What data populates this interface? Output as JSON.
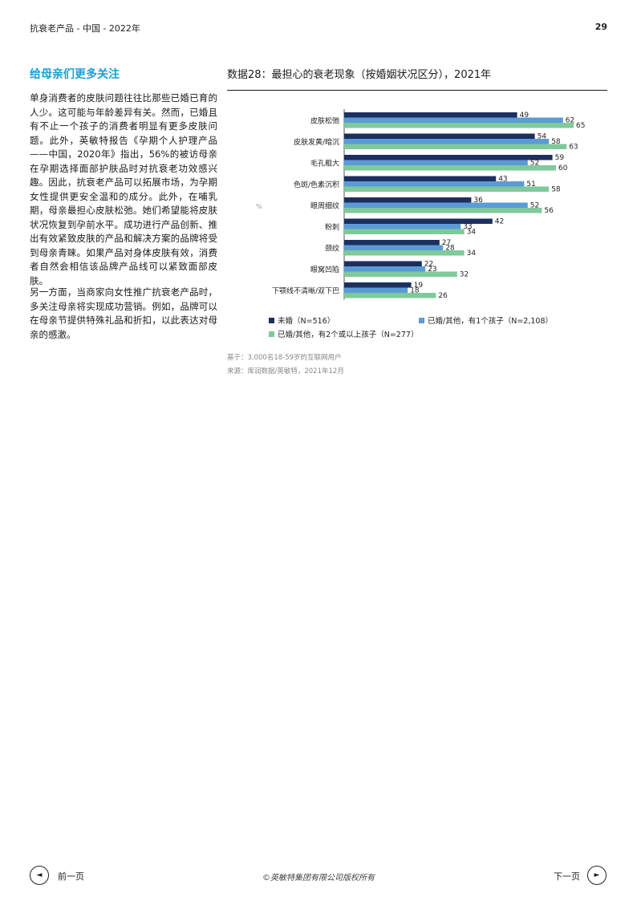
{
  "header": {
    "left": "抗衰老产品 - 中国 - 2022年",
    "page_number": "29"
  },
  "section": {
    "title": "给母亲们更多关注",
    "paragraphs": [
      "单身消费者的皮肤问题往往比那些已婚已育的人少。这可能与年龄差异有关。然而，已婚且有不止一个孩子的消费者明显有更多皮肤问题。此外，英敏特报告《孕期个人护理产品——中国，2020年》指出，56%的被访母亲在孕期选择面部护肤品时对抗衰老功效感兴趣。因此，抗衰老产品可以拓展市场，为孕期女性提供更安全温和的成分。此外，在哺乳期，母亲最担心皮肤松弛。她们希望能将皮肤状况恢复到孕前水平。成功进行产品创新、推出有效紧致皮肤的产品和解决方案的品牌将受到母亲青睐。如果产品对身体皮肤有效，消费者自然会相信该品牌产品线可以紧致面部皮肤。",
      "另一方面，当商家向女性推广抗衰老产品时，多关注母亲将实现成功营销。例如，品牌可以在母亲节提供特殊礼品和折扣，以此表达对母亲的感激。"
    ]
  },
  "chart_data": {
    "type": "bar",
    "orientation": "horizontal",
    "title": "数据28：最担心的衰老现象（按婚姻状况区分），2021年",
    "unit_label": "%",
    "categories": [
      "皮肤松弛",
      "皮肤发黄/暗沉",
      "毛孔粗大",
      "色斑/色素沉积",
      "眼周细纹",
      "粉刺",
      "颈纹",
      "眼窝凹陷",
      "下颚线不清晰/双下巴"
    ],
    "series": [
      {
        "name": "未婚（N=516）",
        "color": "#1c2f5e",
        "values": [
          49,
          54,
          59,
          43,
          36,
          42,
          27,
          22,
          19
        ]
      },
      {
        "name": "已婚/其他，有1个孩子（N=2,108）",
        "color": "#5b9bd5",
        "values": [
          62,
          58,
          52,
          51,
          52,
          33,
          28,
          23,
          18
        ]
      },
      {
        "name": "已婚/其他，有2个或以上孩子（N=277）",
        "color": "#7fc99b",
        "values": [
          65,
          63,
          60,
          58,
          56,
          34,
          34,
          32,
          26
        ]
      }
    ],
    "xlim": [
      0,
      70
    ],
    "grid": false,
    "legend_position": "bottom"
  },
  "notes": {
    "base": "基于：3,000名18-59岁的互联网用户",
    "source": "来源：库润数据/英敏特，2021年12月"
  },
  "footer": {
    "prev_label": "前一页",
    "next_label": "下一页",
    "copyright": "©英敏特集团有限公司版权所有",
    "prev_icon": "◄",
    "next_icon": "►"
  }
}
